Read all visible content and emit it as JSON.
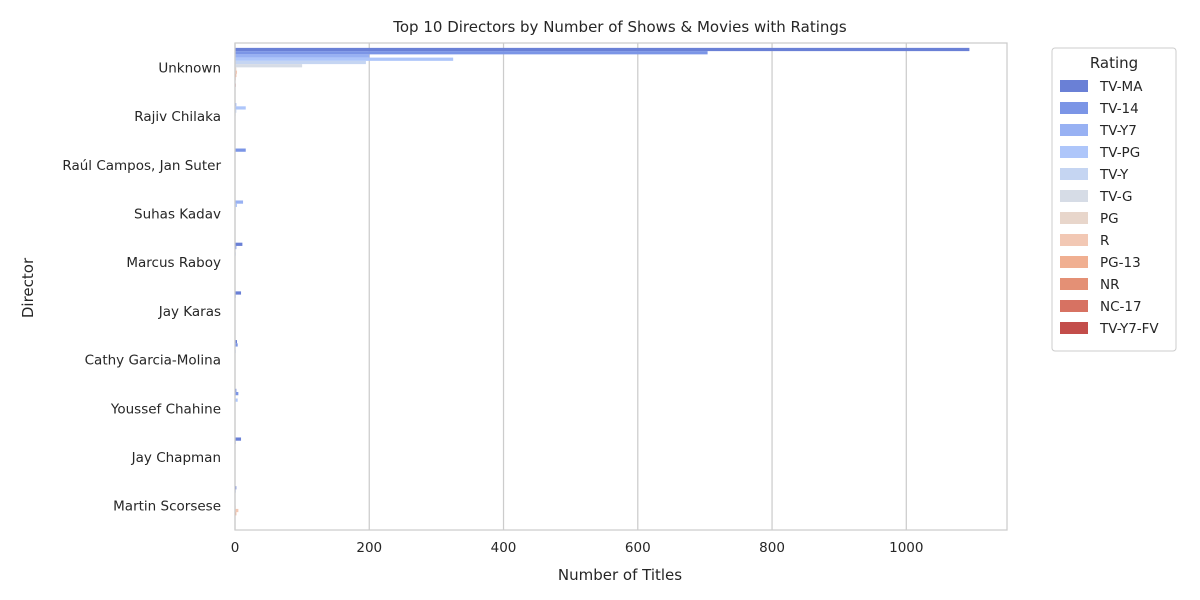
{
  "chart_data": {
    "type": "bar",
    "orientation": "horizontal",
    "title": "Top 10 Directors by Number of Shows & Movies with Ratings",
    "xlabel": "Number of Titles",
    "ylabel": "Director",
    "xlim": [
      0,
      1150
    ],
    "xticks": [
      0,
      200,
      400,
      600,
      800,
      1000
    ],
    "grid": "vertical",
    "legend": {
      "title": "Rating",
      "placement": "outside-right"
    },
    "categories": [
      "Unknown",
      "Rajiv Chilaka",
      "Raúl Campos, Jan Suter",
      "Suhas Kadav",
      "Marcus Raboy",
      "Jay Karas",
      "Cathy Garcia-Molina",
      "Youssef Chahine",
      "Jay Chapman",
      "Martin Scorsese"
    ],
    "series": [
      {
        "name": "TV-MA",
        "color": "#6a80d6",
        "values": [
          1094,
          0,
          0,
          0,
          11,
          9,
          3,
          2,
          9,
          2
        ]
      },
      {
        "name": "TV-14",
        "color": "#7b95e6",
        "values": [
          704,
          0,
          16,
          0,
          2,
          1,
          4,
          5,
          1,
          1
        ]
      },
      {
        "name": "TV-Y7",
        "color": "#98b1f3",
        "values": [
          200,
          2,
          0,
          12,
          0,
          0,
          0,
          0,
          0,
          0
        ]
      },
      {
        "name": "TV-PG",
        "color": "#aec6fa",
        "values": [
          325,
          16,
          0,
          3,
          1,
          0,
          1,
          4,
          0,
          0
        ]
      },
      {
        "name": "TV-Y",
        "color": "#c5d5f2",
        "values": [
          195,
          2,
          0,
          1,
          0,
          0,
          0,
          0,
          0,
          0
        ]
      },
      {
        "name": "TV-G",
        "color": "#d6dce6",
        "values": [
          100,
          1,
          0,
          0,
          0,
          0,
          0,
          0,
          0,
          0
        ]
      },
      {
        "name": "PG",
        "color": "#e8d6cb",
        "values": [
          2,
          0,
          0,
          0,
          0,
          0,
          0,
          0,
          0,
          1
        ]
      },
      {
        "name": "R",
        "color": "#f2c8b4",
        "values": [
          3,
          0,
          0,
          0,
          0,
          0,
          0,
          0,
          0,
          5
        ]
      },
      {
        "name": "PG-13",
        "color": "#f0af91",
        "values": [
          2,
          0,
          0,
          0,
          0,
          0,
          0,
          0,
          0,
          2
        ]
      },
      {
        "name": "NR",
        "color": "#e49075",
        "values": [
          1,
          0,
          0,
          0,
          0,
          0,
          0,
          0,
          0,
          0
        ]
      },
      {
        "name": "NC-17",
        "color": "#d77262",
        "values": [
          0,
          0,
          0,
          0,
          0,
          0,
          0,
          0,
          0,
          0
        ]
      },
      {
        "name": "TV-Y7-FV",
        "color": "#c34d4a",
        "values": [
          1,
          0,
          0,
          0,
          0,
          0,
          0,
          0,
          0,
          0
        ]
      }
    ]
  }
}
